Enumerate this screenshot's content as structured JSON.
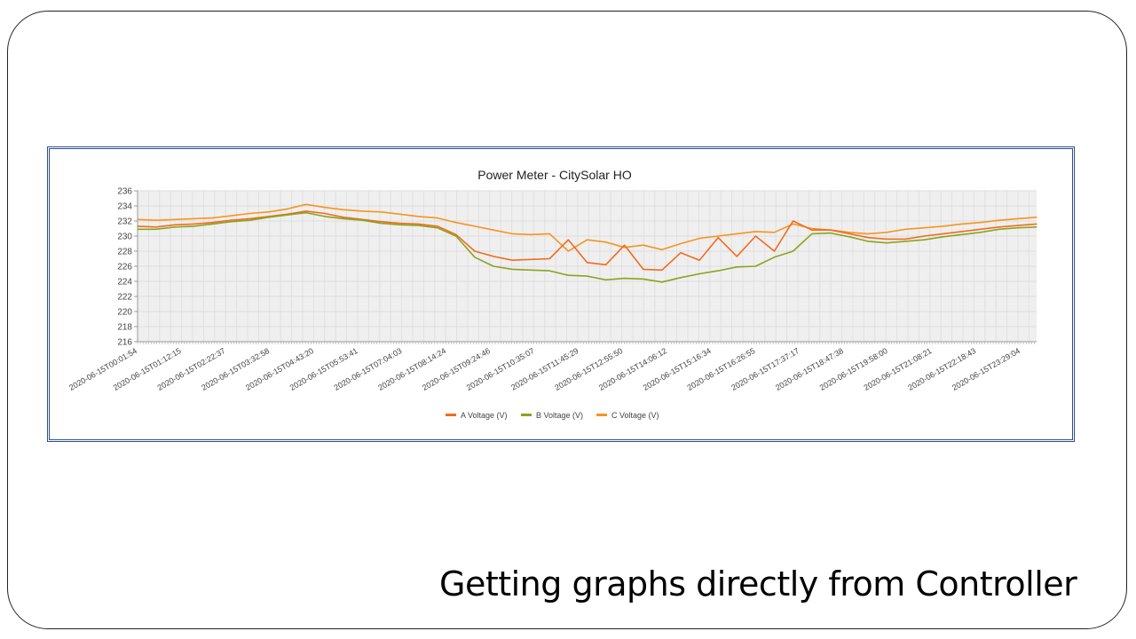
{
  "slide": {
    "caption": "Getting graphs directly from Controller"
  },
  "chart_data": {
    "type": "line",
    "title": "Power Meter - CitySolar HO",
    "xlabel": "",
    "ylabel": "",
    "ylim": [
      216,
      236
    ],
    "yticks": [
      "216",
      "218",
      "220",
      "222",
      "224",
      "226",
      "228",
      "230",
      "232",
      "234",
      "236"
    ],
    "xlim_hours": [
      0,
      24
    ],
    "xtick_labels": [
      "2020-06-15T00:01:54",
      "2020-06-15T01:12:15",
      "2020-06-15T02:22:37",
      "2020-06-15T03:32:58",
      "2020-06-15T04:43:20",
      "2020-06-15T05:53:41",
      "2020-06-15T07:04:03",
      "2020-06-15T08:14:24",
      "2020-06-15T09:24:46",
      "2020-06-15T10:35:07",
      "2020-06-15T11:45:29",
      "2020-06-15T12:55:50",
      "2020-06-15T14:06:12",
      "2020-06-15T15:16:34",
      "2020-06-15T16:26:55",
      "2020-06-15T17:37:17",
      "2020-06-15T18:47:38",
      "2020-06-15T19:58:00",
      "2020-06-15T21:08:21",
      "2020-06-15T22:18:43",
      "2020-06-15T23:29:04"
    ],
    "grid": true,
    "legend_position": "bottom",
    "x_hours_step": 0.5,
    "series": [
      {
        "name": "A Voltage (V)",
        "color": "#f26b1d",
        "values": [
          231.3,
          231.2,
          231.5,
          231.6,
          231.8,
          232.1,
          232.3,
          232.6,
          232.9,
          233.3,
          233.0,
          232.5,
          232.2,
          231.9,
          231.7,
          231.6,
          231.3,
          230.2,
          228.0,
          227.3,
          226.8,
          226.9,
          227.0,
          229.5,
          226.5,
          226.2,
          228.8,
          225.6,
          225.5,
          227.8,
          226.8,
          229.8,
          227.3,
          230.0,
          228.0,
          232.0,
          230.8,
          230.8,
          230.3,
          229.8,
          229.6,
          229.6,
          230.0,
          230.3,
          230.6,
          230.9,
          231.2,
          231.4,
          231.6
        ]
      },
      {
        "name": "B Voltage (V)",
        "color": "#8aa41e",
        "values": [
          230.9,
          230.9,
          231.2,
          231.3,
          231.6,
          231.9,
          232.1,
          232.5,
          232.8,
          233.1,
          232.6,
          232.3,
          232.1,
          231.7,
          231.5,
          231.4,
          231.1,
          230.0,
          227.2,
          226.0,
          225.6,
          225.5,
          225.4,
          224.8,
          224.7,
          224.2,
          224.4,
          224.3,
          223.9,
          224.5,
          225.0,
          225.4,
          225.9,
          226.0,
          227.2,
          228.0,
          230.3,
          230.4,
          229.9,
          229.3,
          229.1,
          229.3,
          229.5,
          229.9,
          230.2,
          230.5,
          230.9,
          231.1,
          231.2
        ]
      },
      {
        "name": "C Voltage (V)",
        "color": "#f7941d",
        "values": [
          232.2,
          232.1,
          232.2,
          232.3,
          232.4,
          232.7,
          233.0,
          233.2,
          233.6,
          234.2,
          233.8,
          233.5,
          233.3,
          233.2,
          232.9,
          232.6,
          232.4,
          231.8,
          231.3,
          230.8,
          230.3,
          230.2,
          230.3,
          228.0,
          229.5,
          229.2,
          228.5,
          228.8,
          228.2,
          229.0,
          229.7,
          230.0,
          230.3,
          230.6,
          230.5,
          231.6,
          231.0,
          230.8,
          230.5,
          230.3,
          230.5,
          230.9,
          231.1,
          231.3,
          231.6,
          231.8,
          232.1,
          232.3,
          232.5
        ]
      }
    ]
  }
}
